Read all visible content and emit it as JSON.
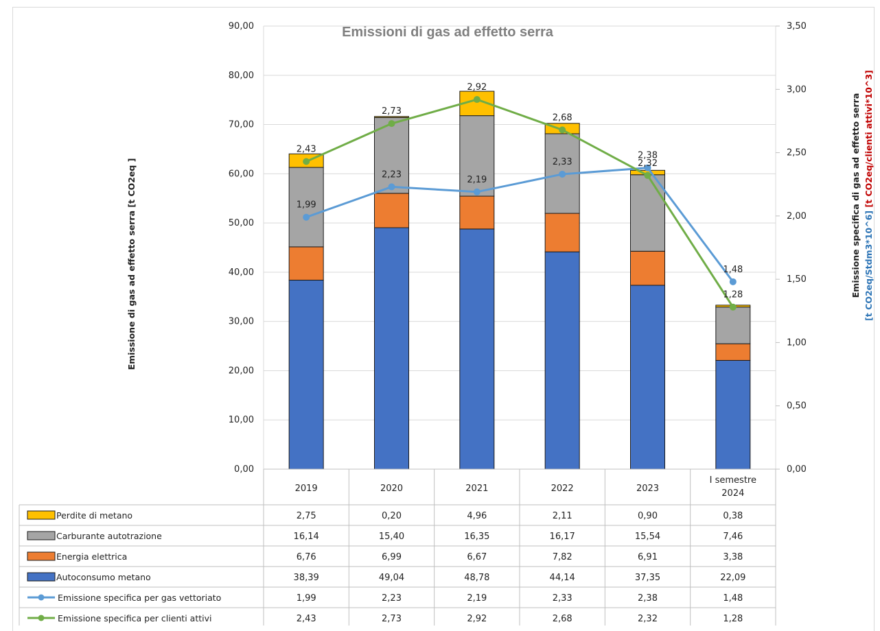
{
  "chart_data": {
    "type": "bar",
    "title": "Emissioni di gas ad effetto serra",
    "categories": [
      "2019",
      "2020",
      "2021",
      "2022",
      "2023",
      "I semestre 2024"
    ],
    "ylabel": "Emissione di gas ad effetto serra [t CO2eq ]",
    "y2label_line1": "Emissione specifica di gas ad effetto serra",
    "y2label_part_blue": "[t CO2eq/Stdm3*10^6]",
    "y2label_part_red": "[t CO2eq/clienti attivi*10^3]",
    "ylim": [
      0,
      90
    ],
    "y_ticks": [
      "0,00",
      "10,00",
      "20,00",
      "30,00",
      "40,00",
      "50,00",
      "60,00",
      "70,00",
      "80,00",
      "90,00"
    ],
    "y2lim": [
      0,
      3.5
    ],
    "y2_ticks": [
      "0,00",
      "0,50",
      "1,00",
      "1,50",
      "2,00",
      "2,50",
      "3,00",
      "3,50"
    ],
    "stacked": true,
    "grid": true,
    "legend": "data-table",
    "bar_series": [
      {
        "name": "Autoconsumo metano",
        "color": "#4472c4",
        "values": [
          38.39,
          49.04,
          48.78,
          44.14,
          37.35,
          22.09
        ],
        "labels": [
          "38,39",
          "49,04",
          "48,78",
          "44,14",
          "37,35",
          "22,09"
        ]
      },
      {
        "name": "Energia elettrica",
        "color": "#ed7d31",
        "values": [
          6.76,
          6.99,
          6.67,
          7.82,
          6.91,
          3.38
        ],
        "labels": [
          "6,76",
          "6,99",
          "6,67",
          "7,82",
          "6,91",
          "3,38"
        ]
      },
      {
        "name": "Carburante autotrazione",
        "color": "#a5a5a5",
        "values": [
          16.14,
          15.4,
          16.35,
          16.17,
          15.54,
          7.46
        ],
        "labels": [
          "16,14",
          "15,40",
          "16,35",
          "16,17",
          "15,54",
          "7,46"
        ]
      },
      {
        "name": "Perdite di metano",
        "color": "#ffc000",
        "values": [
          2.75,
          0.2,
          4.96,
          2.11,
          0.9,
          0.38
        ],
        "labels": [
          "2,75",
          "0,20",
          "4,96",
          "2,11",
          "0,90",
          "0,38"
        ]
      }
    ],
    "line_series": [
      {
        "name": "Emissione specifica per gas vettoriato",
        "color": "#5b9bd5",
        "axis": "secondary",
        "values": [
          1.99,
          2.23,
          2.19,
          2.33,
          2.38,
          1.48
        ],
        "labels": [
          "1,99",
          "2,23",
          "2,19",
          "2,33",
          "2,38",
          "1,48"
        ]
      },
      {
        "name": "Emissione specifica per clienti attivi",
        "color": "#70ad47",
        "axis": "secondary",
        "values": [
          2.43,
          2.73,
          2.92,
          2.68,
          2.32,
          1.28
        ],
        "labels": [
          "2,43",
          "2,73",
          "2,92",
          "2,68",
          "2,32",
          "1,28"
        ]
      }
    ],
    "table_row_order": [
      "Perdite di metano",
      "Carburante autotrazione",
      "Energia elettrica",
      "Autoconsumo metano",
      "Emissione specifica per gas vettoriato",
      "Emissione specifica per clienti attivi"
    ]
  }
}
